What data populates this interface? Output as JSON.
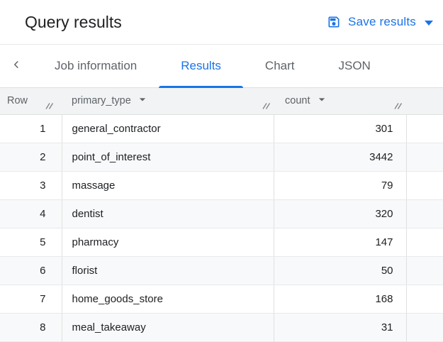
{
  "header": {
    "title": "Query results",
    "save_results": {
      "label": "Save results"
    }
  },
  "tabs": {
    "items": [
      {
        "label": "Job information",
        "active": false
      },
      {
        "label": "Results",
        "active": true
      },
      {
        "label": "Chart",
        "active": false
      },
      {
        "label": "JSON",
        "active": false
      }
    ]
  },
  "table": {
    "columns": [
      {
        "label": "Row",
        "has_menu_arrow": false
      },
      {
        "label": "primary_type",
        "has_menu_arrow": true
      },
      {
        "label": "count",
        "has_menu_arrow": true
      }
    ],
    "rows": [
      {
        "row": "1",
        "primary_type": "general_contractor",
        "count": "301"
      },
      {
        "row": "2",
        "primary_type": "point_of_interest",
        "count": "3442"
      },
      {
        "row": "3",
        "primary_type": "massage",
        "count": "79"
      },
      {
        "row": "4",
        "primary_type": "dentist",
        "count": "320"
      },
      {
        "row": "5",
        "primary_type": "pharmacy",
        "count": "147"
      },
      {
        "row": "6",
        "primary_type": "florist",
        "count": "50"
      },
      {
        "row": "7",
        "primary_type": "home_goods_store",
        "count": "168"
      },
      {
        "row": "8",
        "primary_type": "meal_takeaway",
        "count": "31"
      }
    ]
  },
  "colors": {
    "accent_blue": "#1a73e8",
    "inactive_tab_gray": "#5f6368",
    "text_dark": "#202124",
    "header_row_bg": "#f1f3f4",
    "alt_row_bg": "#f8f9fa",
    "border_gray": "#e0e0e0"
  }
}
